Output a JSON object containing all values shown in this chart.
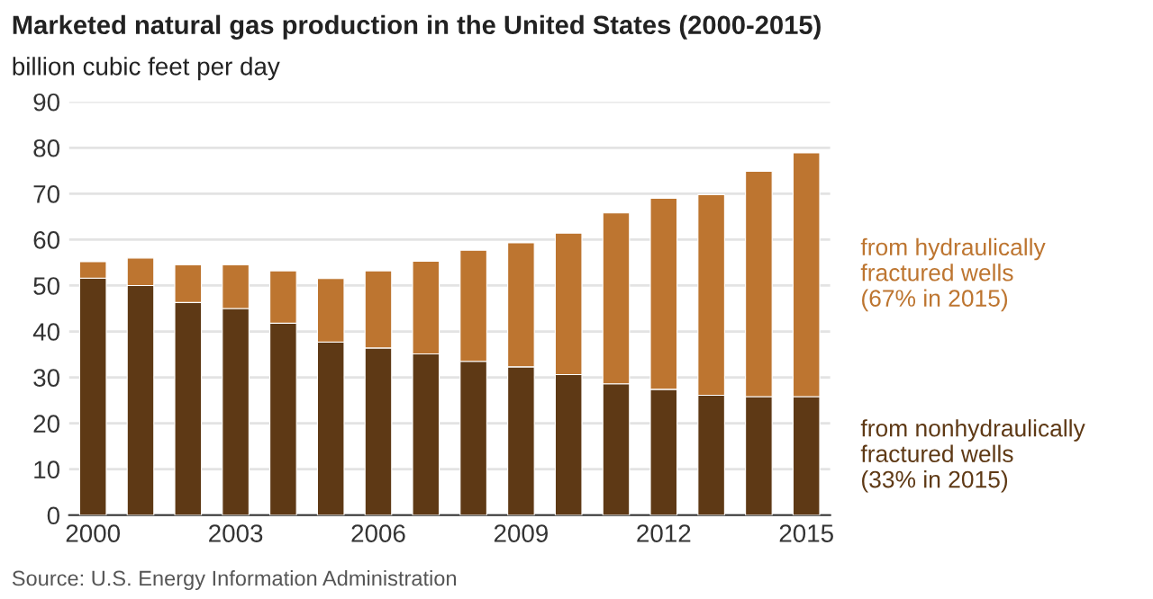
{
  "chart_data": {
    "type": "bar",
    "stacked": true,
    "title": "Marketed natural gas production in the United States (2000-2015)",
    "ylabel": "billion cubic feet per day",
    "x": [
      2000,
      2001,
      2002,
      2003,
      2004,
      2005,
      2006,
      2007,
      2008,
      2009,
      2010,
      2011,
      2012,
      2013,
      2014,
      2015
    ],
    "series": [
      {
        "name": "from nonhydraulically\nfractured wells\n(33% in 2015)",
        "color": "#5e3915",
        "values": [
          51.6,
          50.0,
          46.3,
          45.0,
          41.8,
          37.7,
          36.4,
          35.1,
          33.5,
          32.3,
          30.6,
          28.6,
          27.4,
          26.1,
          25.8,
          25.8
        ]
      },
      {
        "name": "from hydraulically\nfractured wells\n(67% in 2015)",
        "color": "#bd7530",
        "values": [
          3.6,
          6.0,
          8.2,
          9.5,
          11.4,
          13.8,
          16.8,
          20.2,
          24.2,
          27.0,
          30.8,
          37.2,
          41.6,
          43.7,
          49.1,
          53.1
        ]
      }
    ],
    "xlim": [
      1999.5,
      2015.5
    ],
    "xticks": [
      2000,
      {
        "value": 2001,
        "label": null
      },
      {
        "value": 2002,
        "label": null
      },
      2003,
      {
        "value": 2004,
        "label": null
      },
      {
        "value": 2005,
        "label": null
      },
      2006,
      {
        "value": 2007,
        "label": null
      },
      {
        "value": 2008,
        "label": null
      },
      2009,
      {
        "value": 2010,
        "label": null
      },
      {
        "value": 2011,
        "label": null
      },
      2012,
      {
        "value": 2013,
        "label": null
      },
      {
        "value": 2014,
        "label": null
      },
      2015
    ],
    "ylim": [
      0,
      90
    ],
    "yticks": [
      0,
      10,
      20,
      30,
      40,
      50,
      60,
      70,
      80,
      90
    ],
    "grid": "y",
    "legend": false,
    "annotations": [
      "Source: U.S. Energy Information Administration"
    ]
  }
}
